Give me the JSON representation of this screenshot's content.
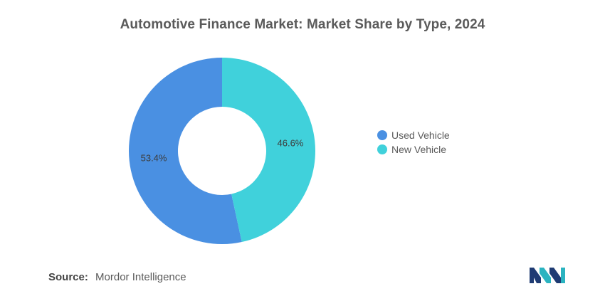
{
  "chart_data": {
    "type": "pie",
    "title": "Automotive Finance Market: Market Share by Type, 2024",
    "categories": [
      "Used Vehicle",
      "New Vehicle"
    ],
    "values": [
      53.4,
      46.6
    ],
    "labels": [
      "53.4%",
      "46.6%"
    ],
    "colors": [
      "#4a90e2",
      "#40d1db"
    ],
    "donut": true,
    "legend_position": "right"
  },
  "source": {
    "label": "Source:",
    "text": "Mordor Intelligence"
  },
  "logo": {
    "icon": "mordor-intelligence-logo-icon",
    "colors": [
      "#1f3b73",
      "#2bb3c0"
    ]
  }
}
